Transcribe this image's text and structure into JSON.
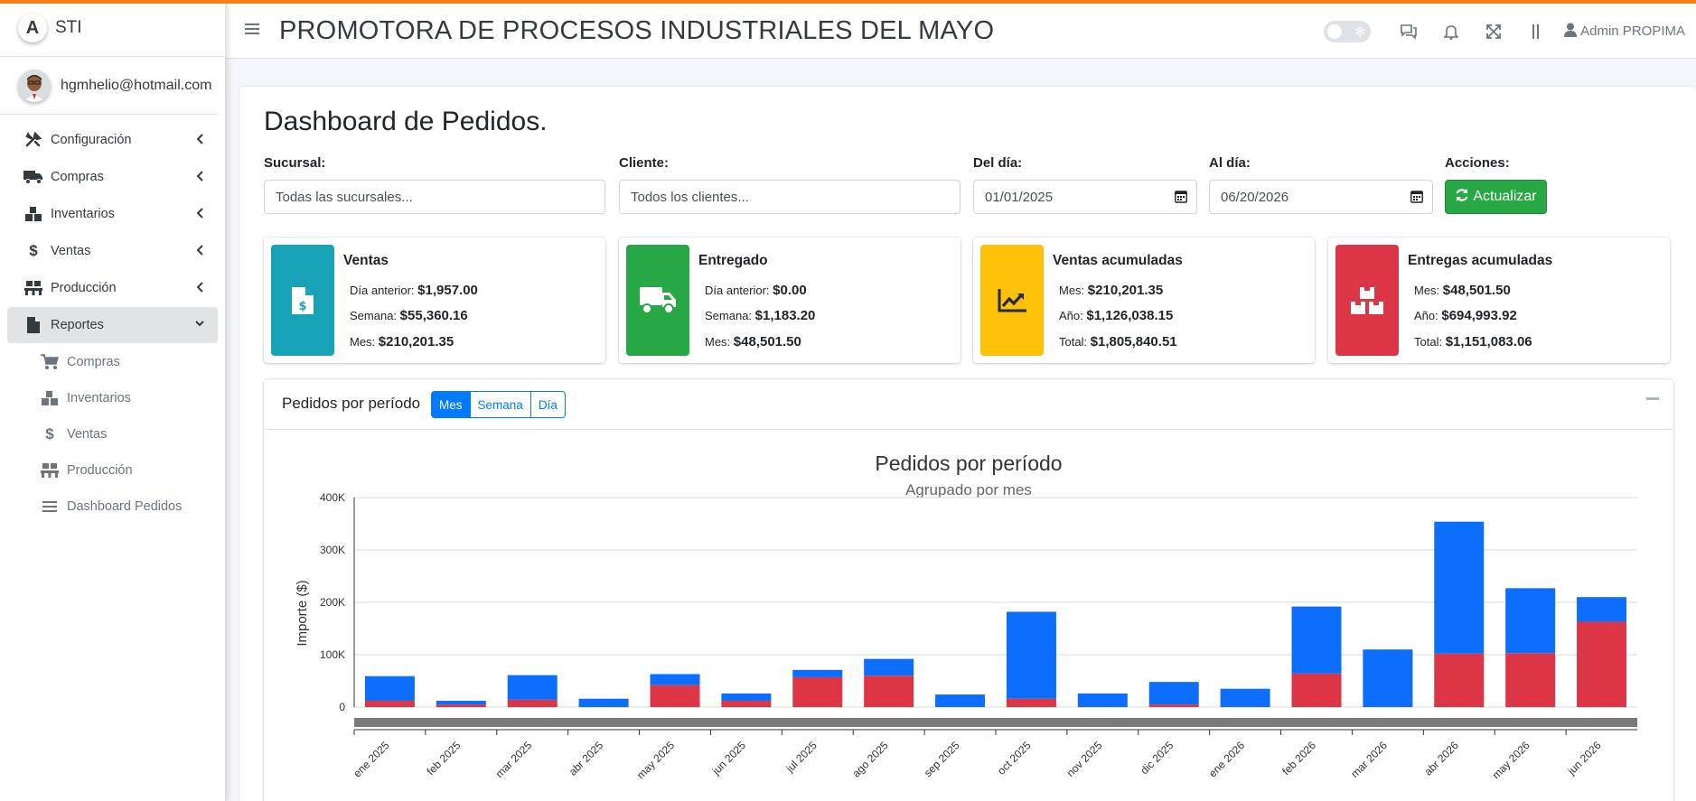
{
  "brand": {
    "text": "STI",
    "logo_letter": "A"
  },
  "user": {
    "email": "hgmhelio@hotmail.com"
  },
  "sidebar": {
    "items": [
      {
        "label": "Configuración",
        "icon": "tools-icon"
      },
      {
        "label": "Compras",
        "icon": "truck-icon"
      },
      {
        "label": "Inventarios",
        "icon": "boxes-icon"
      },
      {
        "label": "Ventas",
        "icon": "dollar-icon"
      },
      {
        "label": "Producción",
        "icon": "pallet-icon"
      },
      {
        "label": "Reportes",
        "icon": "file-icon"
      }
    ],
    "subitems": [
      {
        "label": "Compras",
        "icon": "cart-icon"
      },
      {
        "label": "Inventarios",
        "icon": "boxes-icon"
      },
      {
        "label": "Ventas",
        "icon": "dollar-icon"
      },
      {
        "label": "Producción",
        "icon": "pallet-icon"
      },
      {
        "label": "Dashboard Pedidos",
        "icon": "list-icon"
      }
    ]
  },
  "header": {
    "company": "PROMOTORA DE PROCESOS INDUSTRIALES DEL MAYO",
    "user": "Admin PROPIMA"
  },
  "page": {
    "title": "Dashboard de Pedidos."
  },
  "filters": {
    "sucursal_label": "Sucursal:",
    "sucursal_value": "Todas las sucursales...",
    "cliente_label": "Cliente:",
    "cliente_value": "Todos los clientes...",
    "del_label": "Del día:",
    "del_value": "01/01/2025",
    "al_label": "Al día:",
    "al_value": "06/20/2026",
    "acciones_label": "Acciones:",
    "actualizar": "Actualizar"
  },
  "infoboxes": [
    {
      "title": "Ventas",
      "color": "#17a2b8",
      "icon": "invoice-dollar-icon",
      "lines": [
        {
          "label": "Día anterior:",
          "value": "$1,957.00"
        },
        {
          "label": "Semana:",
          "value": "$55,360.16"
        },
        {
          "label": "Mes:",
          "value": "$210,201.35"
        }
      ]
    },
    {
      "title": "Entregado",
      "color": "#28a745",
      "icon": "delivery-truck-icon",
      "lines": [
        {
          "label": "Día anterior:",
          "value": "$0.00"
        },
        {
          "label": "Semana:",
          "value": "$1,183.20"
        },
        {
          "label": "Mes:",
          "value": "$48,501.50"
        }
      ]
    },
    {
      "title": "Ventas acumuladas",
      "color": "#ffc107",
      "icon": "chart-line-icon",
      "lines": [
        {
          "label": "Mes:",
          "value": "$210,201.35"
        },
        {
          "label": "Año:",
          "value": "$1,126,038.15"
        },
        {
          "label": "Total:",
          "value": "$1,805,840.51"
        }
      ]
    },
    {
      "title": "Entregas acumuladas",
      "color": "#dc3545",
      "icon": "boxes-icon",
      "lines": [
        {
          "label": "Mes:",
          "value": "$48,501.50"
        },
        {
          "label": "Año:",
          "value": "$694,993.92"
        },
        {
          "label": "Total:",
          "value": "$1,151,083.06"
        }
      ]
    }
  ],
  "chart_card": {
    "title": "Pedidos por período",
    "buttons": [
      "Mes",
      "Semana",
      "Día"
    ],
    "active_button": "Mes"
  },
  "chart_data": {
    "type": "bar",
    "stacked": true,
    "title": "Pedidos por período",
    "subtitle": "Agrupado por mes",
    "ylabel": "Importe ($)",
    "ylim": [
      0,
      400000
    ],
    "yticks": [
      "0",
      "100K",
      "200K",
      "300K",
      "400K"
    ],
    "categories": [
      "ene 2025",
      "feb 2025",
      "mar 2025",
      "abr 2025",
      "may 2025",
      "jun 2025",
      "jul 2025",
      "ago 2025",
      "sep 2025",
      "oct 2025",
      "nov 2025",
      "dic 2025",
      "ene 2026",
      "feb 2026",
      "mar 2026",
      "abr 2026",
      "may 2026",
      "jun 2026"
    ],
    "series": [
      {
        "color": "#dc3545",
        "values": [
          12000,
          5000,
          14000,
          0,
          42000,
          12000,
          57000,
          60000,
          0,
          16000,
          0,
          5000,
          0,
          64000,
          0,
          102000,
          103000,
          163000
        ]
      },
      {
        "color": "#0d6efd",
        "values": [
          47000,
          7000,
          47000,
          16000,
          21000,
          14000,
          14000,
          32000,
          24000,
          166000,
          26000,
          43000,
          35000,
          128000,
          110000,
          252000,
          124000,
          47000
        ]
      }
    ],
    "grid": true
  }
}
